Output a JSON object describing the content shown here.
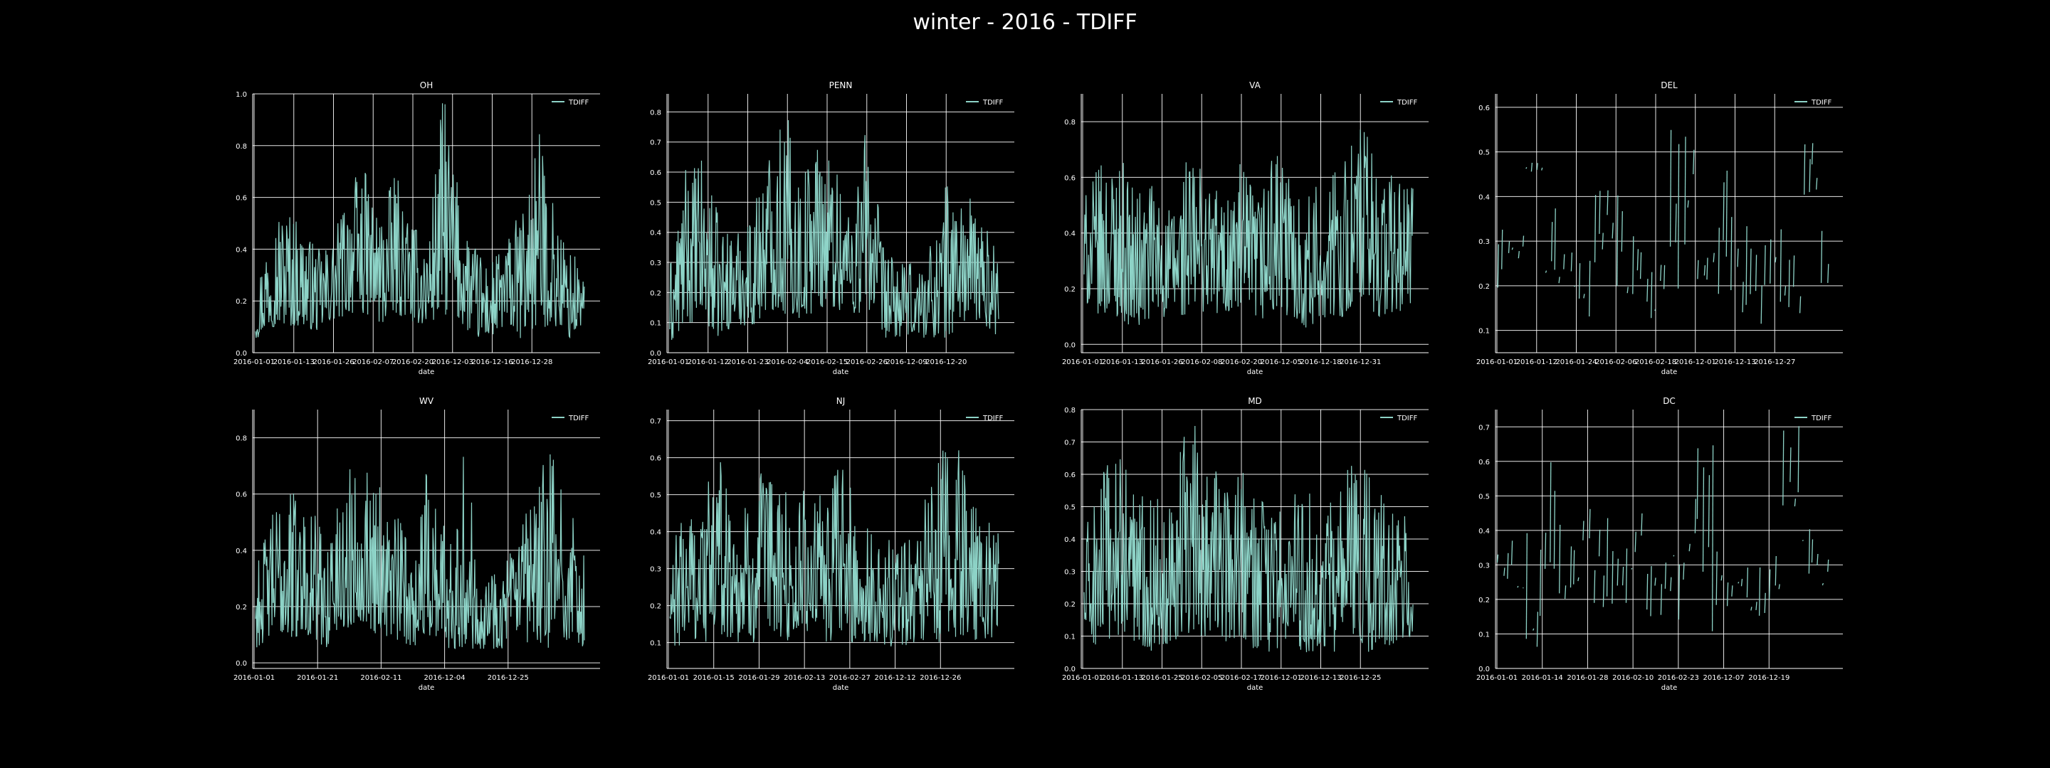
{
  "figure": {
    "title": "winter - 2016 - TDIFF",
    "background": "#000000",
    "line_color": "#8dd3c7",
    "grid_color": "#ffffff"
  },
  "chart_data": [
    {
      "type": "line",
      "title": "OH",
      "xlabel": "date",
      "ylabel": "",
      "legend": "TDIFF",
      "legend_position": "top-right",
      "grid": true,
      "ylim": [
        0,
        1.0
      ],
      "yticks": [
        0.0,
        0.2,
        0.4,
        0.6,
        0.8,
        1.0
      ],
      "ytick_labels": [
        "0.0",
        "0.2",
        "0.4",
        "0.6",
        "0.8",
        "1.0"
      ],
      "xtick_labels": [
        "2016-01-01",
        "2016-01-13",
        "2016-01-26",
        "2016-02-07",
        "2016-02-20",
        "2016-12-03",
        "2016-12-16",
        "2016-12-28"
      ],
      "series": [
        {
          "name": "TDIFF",
          "gaps": false,
          "envelope": [
            [
              0.05,
              0.25
            ],
            [
              0.1,
              0.55
            ],
            [
              0.1,
              0.58
            ],
            [
              0.1,
              0.5
            ],
            [
              0.08,
              0.4
            ],
            [
              0.12,
              0.45
            ],
            [
              0.15,
              0.68
            ],
            [
              0.15,
              0.7
            ],
            [
              0.1,
              0.55
            ],
            [
              0.15,
              0.7
            ],
            [
              0.12,
              0.5
            ],
            [
              0.1,
              0.45
            ],
            [
              0.15,
              1.02
            ],
            [
              0.12,
              0.62
            ],
            [
              0.05,
              0.42
            ],
            [
              0.05,
              0.35
            ],
            [
              0.1,
              0.45
            ],
            [
              0.05,
              0.55
            ],
            [
              0.1,
              0.88
            ],
            [
              0.1,
              0.6
            ],
            [
              0.05,
              0.4
            ],
            [
              0.1,
              0.35
            ]
          ]
        }
      ]
    },
    {
      "type": "line",
      "title": "PENN",
      "xlabel": "date",
      "ylabel": "",
      "legend": "TDIFF",
      "legend_position": "top-right",
      "grid": true,
      "ylim": [
        0,
        0.86
      ],
      "yticks": [
        0.0,
        0.1,
        0.2,
        0.3,
        0.4,
        0.5,
        0.6,
        0.7,
        0.8
      ],
      "ytick_labels": [
        "0.0",
        "0.1",
        "0.2",
        "0.3",
        "0.4",
        "0.5",
        "0.6",
        "0.7",
        "0.8"
      ],
      "xtick_labels": [
        "2016-01-01",
        "2016-01-12",
        "2016-01-23",
        "2016-02-04",
        "2016-02-15",
        "2016-02-26",
        "2016-12-09",
        "2016-12-20"
      ],
      "series": [
        {
          "name": "TDIFF",
          "gaps": false,
          "envelope": [
            [
              0.02,
              0.3
            ],
            [
              0.1,
              0.62
            ],
            [
              0.1,
              0.65
            ],
            [
              0.05,
              0.45
            ],
            [
              0.1,
              0.4
            ],
            [
              0.08,
              0.5
            ],
            [
              0.15,
              0.7
            ],
            [
              0.12,
              0.83
            ],
            [
              0.1,
              0.6
            ],
            [
              0.15,
              0.77
            ],
            [
              0.15,
              0.65
            ],
            [
              0.1,
              0.55
            ],
            [
              0.15,
              0.8
            ],
            [
              0.05,
              0.35
            ],
            [
              0.05,
              0.3
            ],
            [
              0.05,
              0.3
            ],
            [
              0.05,
              0.4
            ],
            [
              0.05,
              0.62
            ],
            [
              0.1,
              0.55
            ],
            [
              0.1,
              0.45
            ],
            [
              0.05,
              0.35
            ]
          ]
        }
      ]
    },
    {
      "type": "line",
      "title": "VA",
      "xlabel": "date",
      "ylabel": "",
      "legend": "TDIFF",
      "legend_position": "top-right",
      "grid": true,
      "ylim": [
        -0.03,
        0.9
      ],
      "yticks": [
        0.0,
        0.2,
        0.4,
        0.6,
        0.8
      ],
      "ytick_labels": [
        "0.0",
        "0.2",
        "0.4",
        "0.6",
        "0.8"
      ],
      "xtick_labels": [
        "2016-01-01",
        "2016-01-13",
        "2016-01-26",
        "2016-02-08",
        "2016-02-20",
        "2016-12-05",
        "2016-12-18",
        "2016-12-31"
      ],
      "series": [
        {
          "name": "TDIFF",
          "gaps": false,
          "envelope": [
            [
              0.15,
              0.55
            ],
            [
              0.1,
              0.65
            ],
            [
              0.1,
              0.7
            ],
            [
              0.05,
              0.55
            ],
            [
              0.1,
              0.6
            ],
            [
              0.08,
              0.5
            ],
            [
              0.1,
              0.7
            ],
            [
              0.12,
              0.65
            ],
            [
              0.1,
              0.55
            ],
            [
              0.1,
              0.65
            ],
            [
              0.08,
              0.55
            ],
            [
              0.1,
              0.72
            ],
            [
              0.1,
              0.6
            ],
            [
              0.05,
              0.55
            ],
            [
              0.1,
              0.6
            ],
            [
              0.1,
              0.65
            ],
            [
              0.1,
              0.87
            ],
            [
              0.1,
              0.65
            ],
            [
              0.1,
              0.62
            ],
            [
              0.15,
              0.6
            ]
          ]
        }
      ]
    },
    {
      "type": "line",
      "title": "DEL",
      "xlabel": "date",
      "ylabel": "",
      "legend": "TDIFF",
      "legend_position": "top-right",
      "grid": true,
      "ylim": [
        0.05,
        0.63
      ],
      "yticks": [
        0.1,
        0.2,
        0.3,
        0.4,
        0.5,
        0.6
      ],
      "ytick_labels": [
        "0.1",
        "0.2",
        "0.3",
        "0.4",
        "0.5",
        "0.6"
      ],
      "xtick_labels": [
        "2016-01-01",
        "2016-01-12",
        "2016-01-24",
        "2016-02-06",
        "2016-02-18",
        "2016-12-01",
        "2016-12-13",
        "2016-12-27"
      ],
      "series": [
        {
          "name": "TDIFF",
          "gaps": true,
          "envelope": [
            [
              0.15,
              0.33
            ],
            [
              0.25,
              0.32
            ],
            [
              0.45,
              0.48
            ],
            [
              0.2,
              0.38
            ],
            [
              0.18,
              0.3
            ],
            [
              0.12,
              0.3
            ],
            [
              0.22,
              0.5
            ],
            [
              0.15,
              0.42
            ],
            [
              0.18,
              0.34
            ],
            [
              0.12,
              0.3
            ],
            [
              0.18,
              0.55
            ],
            [
              0.25,
              0.62
            ],
            [
              0.2,
              0.3
            ],
            [
              0.1,
              0.48
            ],
            [
              0.12,
              0.35
            ],
            [
              0.1,
              0.3
            ],
            [
              0.15,
              0.35
            ],
            [
              0.12,
              0.3
            ],
            [
              0.4,
              0.52
            ],
            [
              0.15,
              0.35
            ]
          ]
        }
      ]
    },
    {
      "type": "line",
      "title": "WV",
      "xlabel": "date",
      "ylabel": "",
      "legend": "TDIFF",
      "legend_position": "top-right",
      "grid": true,
      "ylim": [
        -0.02,
        0.9
      ],
      "yticks": [
        0.0,
        0.2,
        0.4,
        0.6,
        0.8
      ],
      "ytick_labels": [
        "0.0",
        "0.2",
        "0.4",
        "0.6",
        "0.8"
      ],
      "xtick_labels": [
        "2016-01-01",
        "2016-01-21",
        "2016-02-11",
        "2016-12-04",
        "2016-12-25"
      ],
      "series": [
        {
          "name": "TDIFF",
          "gaps": false,
          "envelope": [
            [
              0.05,
              0.35
            ],
            [
              0.1,
              0.55
            ],
            [
              0.08,
              0.65
            ],
            [
              0.1,
              0.6
            ],
            [
              0.05,
              0.45
            ],
            [
              0.1,
              0.65
            ],
            [
              0.15,
              0.75
            ],
            [
              0.1,
              0.7
            ],
            [
              0.08,
              0.55
            ],
            [
              0.05,
              0.45
            ],
            [
              0.1,
              0.72
            ],
            [
              0.05,
              0.5
            ],
            [
              0.05,
              0.75
            ],
            [
              0.05,
              0.4
            ],
            [
              0.05,
              0.35
            ],
            [
              0.05,
              0.45
            ],
            [
              0.05,
              0.58
            ],
            [
              0.05,
              0.78
            ],
            [
              0.08,
              0.55
            ],
            [
              0.05,
              0.45
            ]
          ]
        }
      ]
    },
    {
      "type": "line",
      "title": "NJ",
      "xlabel": "date",
      "ylabel": "",
      "legend": "TDIFF",
      "legend_position": "top-right",
      "grid": true,
      "ylim": [
        0.03,
        0.73
      ],
      "yticks": [
        0.1,
        0.2,
        0.3,
        0.4,
        0.5,
        0.6,
        0.7
      ],
      "ytick_labels": [
        "0.1",
        "0.2",
        "0.3",
        "0.4",
        "0.5",
        "0.6",
        "0.7"
      ],
      "xtick_labels": [
        "2016-01-01",
        "2016-01-15",
        "2016-01-29",
        "2016-02-13",
        "2016-02-27",
        "2016-12-12",
        "2016-12-26"
      ],
      "series": [
        {
          "name": "TDIFF",
          "gaps": false,
          "envelope": [
            [
              0.08,
              0.3
            ],
            [
              0.1,
              0.55
            ],
            [
              0.1,
              0.52
            ],
            [
              0.12,
              0.62
            ],
            [
              0.1,
              0.45
            ],
            [
              0.1,
              0.55
            ],
            [
              0.12,
              0.6
            ],
            [
              0.1,
              0.48
            ],
            [
              0.12,
              0.55
            ],
            [
              0.1,
              0.5
            ],
            [
              0.1,
              0.6
            ],
            [
              0.1,
              0.45
            ],
            [
              0.1,
              0.38
            ],
            [
              0.08,
              0.4
            ],
            [
              0.1,
              0.45
            ],
            [
              0.1,
              0.5
            ],
            [
              0.1,
              0.68
            ],
            [
              0.12,
              0.6
            ],
            [
              0.1,
              0.45
            ],
            [
              0.12,
              0.4
            ]
          ]
        }
      ]
    },
    {
      "type": "line",
      "title": "MD",
      "xlabel": "date",
      "ylabel": "",
      "legend": "TDIFF",
      "legend_position": "top-right",
      "grid": true,
      "ylim": [
        0,
        0.8
      ],
      "yticks": [
        0.0,
        0.1,
        0.2,
        0.3,
        0.4,
        0.5,
        0.6,
        0.7,
        0.8
      ],
      "ytick_labels": [
        "0.0",
        "0.1",
        "0.2",
        "0.3",
        "0.4",
        "0.5",
        "0.6",
        "0.7",
        "0.8"
      ],
      "xtick_labels": [
        "2016-01-01",
        "2016-01-13",
        "2016-01-25",
        "2016-02-05",
        "2016-02-17",
        "2016-12-01",
        "2016-12-13",
        "2016-12-25"
      ],
      "series": [
        {
          "name": "TDIFF",
          "gaps": false,
          "envelope": [
            [
              0.05,
              0.45
            ],
            [
              0.08,
              0.6
            ],
            [
              0.1,
              0.68
            ],
            [
              0.08,
              0.6
            ],
            [
              0.05,
              0.55
            ],
            [
              0.08,
              0.62
            ],
            [
              0.1,
              0.78
            ],
            [
              0.1,
              0.72
            ],
            [
              0.08,
              0.6
            ],
            [
              0.1,
              0.62
            ],
            [
              0.05,
              0.55
            ],
            [
              0.05,
              0.5
            ],
            [
              0.05,
              0.58
            ],
            [
              0.05,
              0.55
            ],
            [
              0.05,
              0.5
            ],
            [
              0.05,
              0.6
            ],
            [
              0.05,
              0.68
            ],
            [
              0.05,
              0.55
            ],
            [
              0.08,
              0.52
            ],
            [
              0.1,
              0.48
            ]
          ]
        }
      ]
    },
    {
      "type": "line",
      "title": "DC",
      "xlabel": "date",
      "ylabel": "",
      "legend": "TDIFF",
      "legend_position": "top-right",
      "grid": true,
      "ylim": [
        0,
        0.75
      ],
      "yticks": [
        0.0,
        0.1,
        0.2,
        0.3,
        0.4,
        0.5,
        0.6,
        0.7
      ],
      "ytick_labels": [
        "0.0",
        "0.1",
        "0.2",
        "0.3",
        "0.4",
        "0.5",
        "0.6",
        "0.7"
      ],
      "xtick_labels": [
        "2016-01-01",
        "2016-01-14",
        "2016-01-28",
        "2016-02-10",
        "2016-02-23",
        "2016-12-07",
        "2016-12-19"
      ],
      "series": [
        {
          "name": "TDIFF",
          "gaps": true,
          "envelope": [
            [
              0.25,
              0.4
            ],
            [
              0.22,
              0.38
            ],
            [
              0.05,
              0.45
            ],
            [
              0.25,
              0.62
            ],
            [
              0.2,
              0.42
            ],
            [
              0.25,
              0.48
            ],
            [
              0.15,
              0.45
            ],
            [
              0.1,
              0.35
            ],
            [
              0.25,
              0.5
            ],
            [
              0.15,
              0.3
            ],
            [
              0.1,
              0.48
            ],
            [
              0.2,
              0.55
            ],
            [
              0.05,
              0.7
            ],
            [
              0.15,
              0.35
            ],
            [
              0.2,
              0.3
            ],
            [
              0.15,
              0.35
            ],
            [
              0.18,
              0.33
            ],
            [
              0.4,
              0.75
            ],
            [
              0.25,
              0.45
            ],
            [
              0.22,
              0.35
            ]
          ]
        }
      ]
    }
  ]
}
